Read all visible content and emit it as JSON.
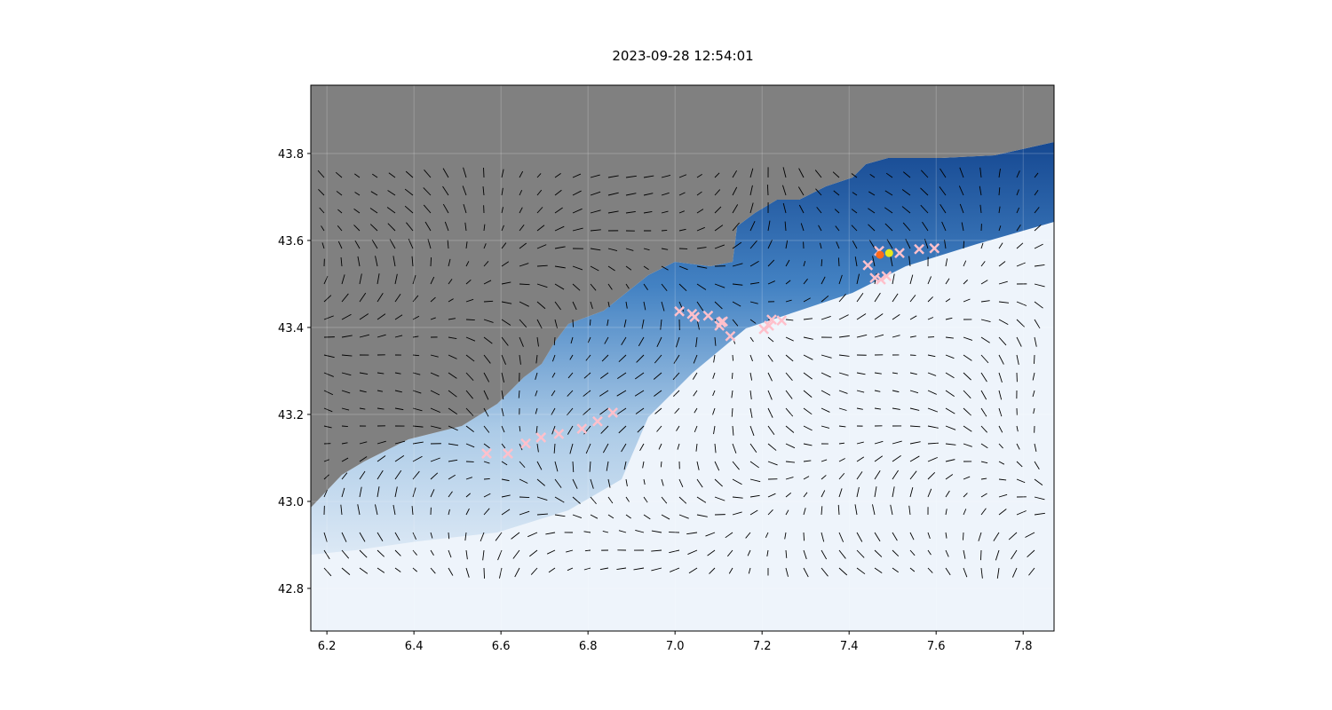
{
  "chart_data": {
    "type": "scatter",
    "title": "2023-09-28 12:54:01",
    "xlim": [
      6.163,
      7.871
    ],
    "ylim": [
      42.702,
      43.957
    ],
    "xticks": [
      6.2,
      6.4,
      6.6,
      6.8,
      {
        "value": 7.0,
        "label": "7.0"
      },
      7.2,
      7.4,
      7.6,
      7.8
    ],
    "yticks": [
      42.8,
      {
        "value": 43.0,
        "label": "43.0"
      },
      43.2,
      43.4,
      43.6,
      43.8
    ],
    "grid": true,
    "series": [
      {
        "marker": "x",
        "color": "#ffc0cb",
        "x": [
          6.567,
          6.616,
          6.657,
          6.692,
          6.733,
          6.786,
          6.822,
          6.857,
          7.01,
          7.039,
          7.045,
          7.076,
          7.106,
          7.11,
          7.102,
          7.127,
          7.204,
          7.216,
          7.222,
          7.245,
          7.443,
          7.459,
          7.473,
          7.486,
          7.516,
          7.561,
          7.596,
          7.469
        ],
        "values": [
          43.11,
          43.11,
          43.133,
          43.147,
          43.155,
          43.167,
          43.184,
          43.204,
          43.437,
          43.431,
          43.424,
          43.427,
          43.412,
          43.414,
          43.404,
          43.38,
          43.396,
          43.404,
          43.418,
          43.416,
          43.543,
          43.514,
          43.51,
          43.518,
          43.571,
          43.58,
          43.582,
          43.576
        ]
      },
      {
        "marker": "o",
        "color": "#ff6a1a",
        "x": [
          7.471
        ],
        "values": [
          43.567
        ]
      },
      {
        "marker": "o",
        "color": "#e8e81a",
        "x": [
          7.492
        ],
        "values": [
          43.571
        ]
      }
    ]
  }
}
